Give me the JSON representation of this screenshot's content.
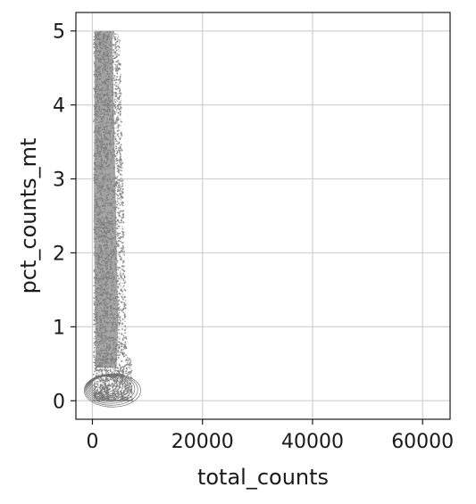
{
  "chart_data": {
    "type": "scatter",
    "title": "",
    "xlabel": "total_counts",
    "ylabel": "pct_counts_mt",
    "xlim": [
      -3000,
      65000
    ],
    "ylim": [
      -0.25,
      5.25
    ],
    "x_ticks": [
      0,
      20000,
      40000,
      60000
    ],
    "x_tick_labels": [
      "0",
      "20000",
      "40000",
      "60000"
    ],
    "y_ticks": [
      0,
      1,
      2,
      3,
      4,
      5
    ],
    "y_tick_labels": [
      "0",
      "1",
      "2",
      "3",
      "4",
      "5"
    ],
    "grid": true,
    "legend": "none",
    "point_color": "#808080",
    "series": [
      {
        "description_points": [
          [
            300,
            5.0
          ],
          [
            1000,
            5.0
          ],
          [
            2000,
            5.0
          ],
          [
            3000,
            5.0
          ],
          [
            4500,
            5.0
          ],
          [
            600,
            4.2
          ],
          [
            2500,
            4.2
          ],
          [
            4800,
            4.0
          ],
          [
            400,
            3.0
          ],
          [
            2000,
            3.0
          ],
          [
            5000,
            3.0
          ],
          [
            400,
            2.0
          ],
          [
            2500,
            2.0
          ],
          [
            5200,
            2.0
          ],
          [
            500,
            1.0
          ],
          [
            2800,
            1.0
          ],
          [
            5600,
            1.0
          ],
          [
            700,
            0.4
          ],
          [
            3000,
            0.2
          ],
          [
            5500,
            0.1
          ],
          [
            7000,
            0.05
          ]
        ]
      }
    ]
  }
}
